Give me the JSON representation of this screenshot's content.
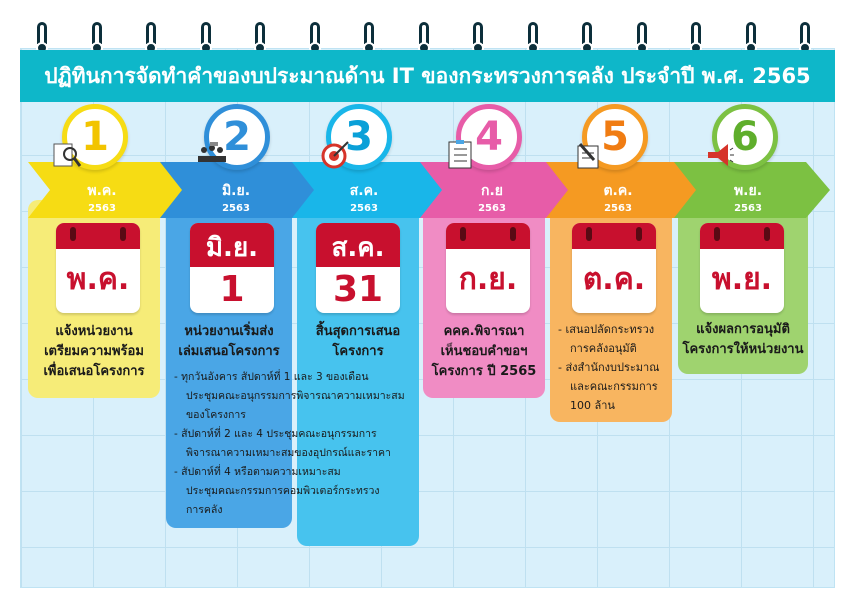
{
  "title": "ปฏิทินการจัดทำคำของบประมาณด้าน IT ของกระทรวงการคลัง ประจำปี พ.ศ. 2565",
  "colors": {
    "teal": "#0eb7c9",
    "step1": "#f6dc14",
    "step2": "#2f8fd9",
    "step3": "#19b6e9",
    "step4": "#e75ca8",
    "step5": "#f59a22",
    "step6": "#7cc142"
  },
  "steps": [
    {
      "number": "1",
      "month": "พ.ค.",
      "year": "2563",
      "calendar": "พ.ค.",
      "icon": "magnifier-icon",
      "description": [
        "แจ้งหน่วยงาน",
        "เตรียมความพร้อม",
        "เพื่อเสนอโครงการ"
      ]
    },
    {
      "number": "2",
      "month": "มิ.ย.",
      "year": "2563",
      "calendar_month": "มิ.ย.",
      "calendar_day": "1",
      "icon": "meeting-icon",
      "description": [
        "หน่วยงานเริ่มส่ง",
        "เล่มเสนอโครงการ"
      ],
      "bullets": [
        [
          "ทุกวันอังคาร สัปดาห์ที่ 1 และ 3 ของเดือน",
          "ประชุมคณะอนุกรรมการพิจารณาความเหมาะสม",
          "ของโครงการ"
        ],
        [
          "สัปดาห์ที่ 2 และ 4 ประชุมคณะอนุกรรมการ",
          "พิจารณาความเหมาะสมของอุปกรณ์และราคา"
        ],
        [
          "สัปดาห์ที่ 4 หรือตามความเหมาะสม",
          "ประชุมคณะกรรมการคอมพิวเตอร์กระทรวง",
          "การคลัง"
        ]
      ]
    },
    {
      "number": "3",
      "month": "ส.ค.",
      "year": "2563",
      "calendar_month": "ส.ค.",
      "calendar_day": "31",
      "icon": "target-icon",
      "description": [
        "สิ้นสุดการเสนอ",
        "โครงการ"
      ]
    },
    {
      "number": "4",
      "month": "ก.ย",
      "year": "2563",
      "calendar": "ก.ย.",
      "icon": "checklist-icon",
      "description": [
        "คคค.พิจารณา",
        "เห็นชอบคำขอฯ",
        "โครงการ ปี 2565"
      ]
    },
    {
      "number": "5",
      "month": "ต.ค.",
      "year": "2563",
      "calendar": "ต.ค.",
      "icon": "document-pen-icon",
      "bullets": [
        [
          "เสนอปลัดกระทรวง",
          "การคลังอนุมัติ"
        ],
        [
          "ส่งสำนักงบประมาณ",
          "และคณะกรรมการ",
          "100 ล้าน"
        ]
      ]
    },
    {
      "number": "6",
      "month": "พ.ย.",
      "year": "2563",
      "calendar": "พ.ย.",
      "icon": "megaphone-icon",
      "description": [
        "แจ้งผลการอนุมัติ",
        "โครงการให้หน่วยงาน"
      ]
    }
  ]
}
